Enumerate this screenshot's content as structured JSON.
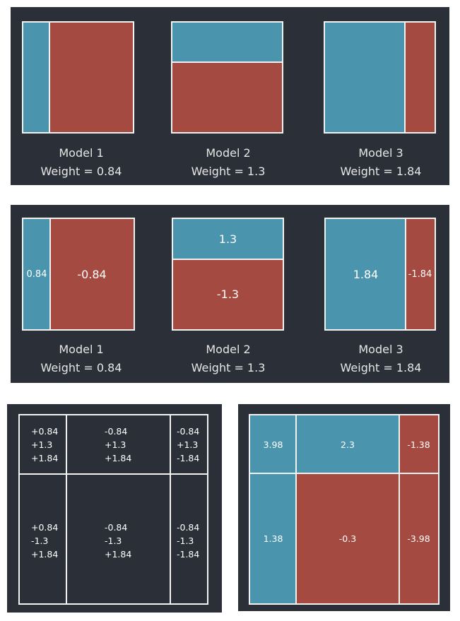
{
  "panel1": {
    "models": [
      {
        "name": "Model 1",
        "weight": "Weight = 0.84"
      },
      {
        "name": "Model 2",
        "weight": "Weight  = 1.3"
      },
      {
        "name": "Model 3",
        "weight": "Weight = 1.84"
      }
    ]
  },
  "panel2": {
    "models": [
      {
        "name": "Model 1",
        "weight": "Weight = 0.84",
        "left_value": "0.84",
        "right_value": "-0.84"
      },
      {
        "name": "Model 2",
        "weight": "Weight  = 1.3",
        "top_value": "1.3",
        "bottom_value": "-1.3"
      },
      {
        "name": "Model 3",
        "weight": "Weight = 1.84",
        "left_value": "1.84",
        "right_value": "-1.84"
      }
    ]
  },
  "sum_grid": {
    "top_left": [
      "+0.84",
      "+1.3",
      "+1.84"
    ],
    "top_middle": [
      "-0.84",
      "+1.3",
      "+1.84"
    ],
    "top_right": [
      "-0.84",
      "+1.3",
      "-1.84"
    ],
    "bottom_left": [
      "+0.84",
      "-1.3",
      "+1.84"
    ],
    "bottom_middle": [
      "-0.84",
      "-1.3",
      "+1.84"
    ],
    "bottom_right": [
      "-0.84",
      "-1.3",
      "-1.84"
    ]
  },
  "result_grid": {
    "top_left": "3.98",
    "top_middle": "2.3",
    "top_right": "-1.38",
    "bottom_left": "1.38",
    "bottom_middle": "-0.3",
    "bottom_right": "-3.98"
  },
  "colors": {
    "panel_bg": "#2b2f37",
    "positive_blue": "#4a95ad",
    "negative_red": "#a54a40",
    "border": "#f2f2f2"
  }
}
